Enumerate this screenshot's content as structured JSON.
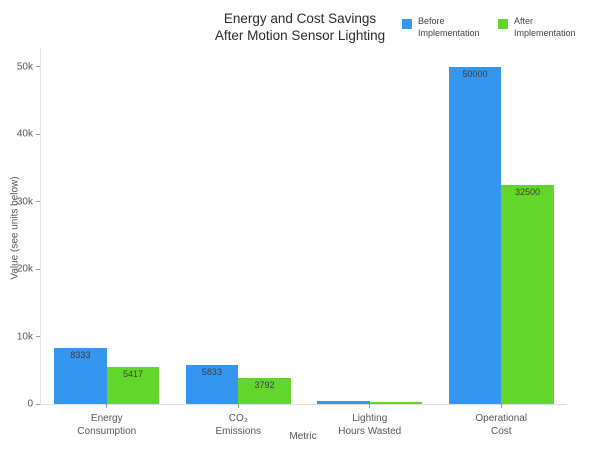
{
  "title": {
    "line1": "Energy and Cost Savings",
    "line2": "After Motion Sensor Lighting"
  },
  "colors": {
    "before": "#3596f0",
    "after": "#63d62c",
    "axis_line": "#e4e4e4",
    "tick_text": "#555555",
    "bar_label_text": "#3d3d3d"
  },
  "chart_data": {
    "type": "bar",
    "title": "Energy and Cost Savings After Motion Sensor Lighting",
    "xlabel": "Metric",
    "ylabel": "Value (see units below)",
    "categories": [
      "Energy\nConsumption",
      "CO₂\nEmissions",
      "Lighting\nHours Wasted",
      "Operational\nCost"
    ],
    "series": [
      {
        "name": "Before Implementation",
        "key": "before",
        "color": "#3596f0",
        "values": [
          8333,
          5833,
          417,
          50000
        ]
      },
      {
        "name": "After Implementation",
        "key": "after",
        "color": "#63d62c",
        "values": [
          5417,
          3792,
          271,
          32500
        ]
      }
    ],
    "bar_value_labels": [
      [
        "8333",
        "5833",
        "417",
        "50000"
      ],
      [
        "5417",
        "3792",
        "271",
        "32500"
      ]
    ],
    "ylim": [
      0,
      50000
    ],
    "ytick_values": [
      0,
      10000,
      20000,
      30000,
      40000,
      50000
    ],
    "ytick_labels": [
      "0",
      "10k",
      "20k",
      "30k",
      "40k",
      "50k"
    ],
    "grid": false,
    "legend_position": "top-right"
  },
  "legend": {
    "items": [
      {
        "label": "Before Implementation",
        "color": "#3596f0"
      },
      {
        "label": "After Implementation",
        "color": "#63d62c"
      }
    ]
  }
}
